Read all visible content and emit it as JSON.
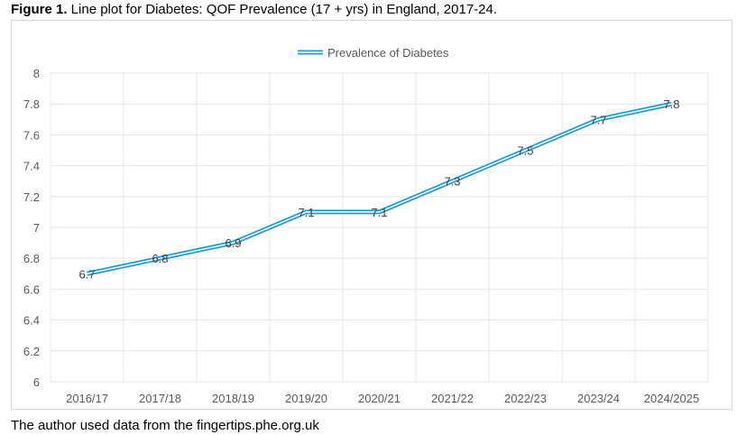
{
  "title": {
    "prefix": "Figure 1.",
    "text": " Line plot for Diabetes: QOF Prevalence (17 + yrs) in England, 2017-24."
  },
  "caption": "The author used data from the fingertips.phe.org.uk",
  "chart_data": {
    "type": "line",
    "title": "",
    "categories": [
      "2016/17",
      "2017/18",
      "2018/19",
      "2019/20",
      "2020/21",
      "2021/22",
      "2022/23",
      "2023/24",
      "2024/2025"
    ],
    "series": [
      {
        "name": "Prevalence of Diabetes",
        "values": [
          6.7,
          6.8,
          6.9,
          7.1,
          7.1,
          7.3,
          7.5,
          7.7,
          7.8
        ],
        "color": "#1f9bd1"
      }
    ],
    "ylim": [
      6,
      8
    ],
    "yticks": [
      "6",
      "6.2",
      "6.4",
      "6.6",
      "6.8",
      "7",
      "7.2",
      "7.4",
      "7.6",
      "7.8",
      "8"
    ],
    "grid": true,
    "legend": "top",
    "data_labels": true,
    "line_style": "double"
  }
}
